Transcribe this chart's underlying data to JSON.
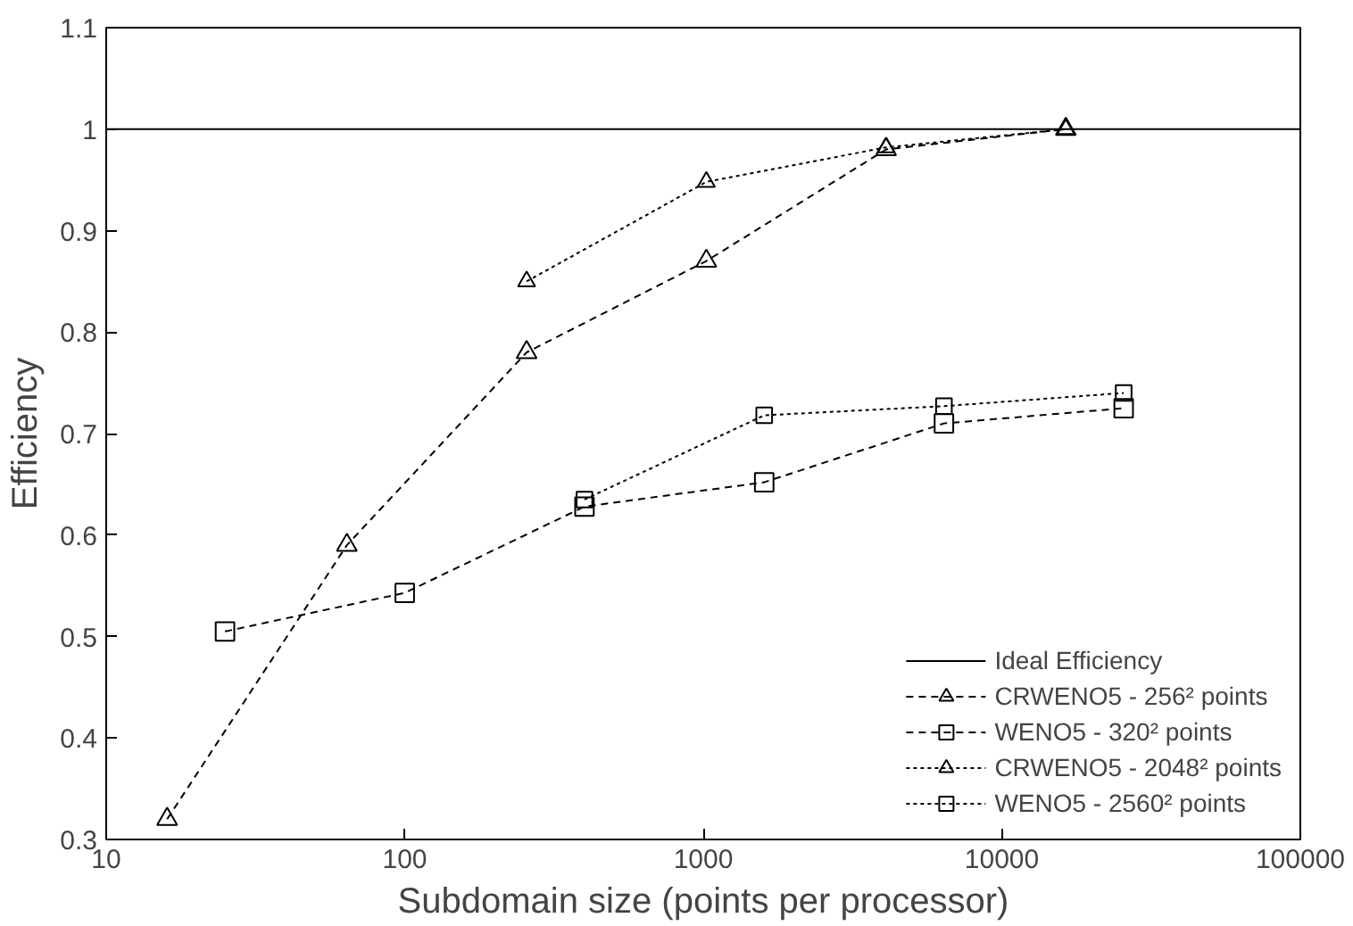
{
  "chart_data": {
    "type": "line",
    "xlabel": "Subdomain size (points per processor)",
    "ylabel": "Efficiency",
    "log": "x",
    "xlim": [
      10,
      100000
    ],
    "xticks": [
      10,
      100,
      1000,
      10000,
      100000
    ],
    "ylim": [
      0.3,
      1.1
    ],
    "yticks": [
      0.3,
      0.4,
      0.5,
      0.6,
      0.7,
      0.8,
      0.9,
      1,
      1.1
    ],
    "grid": false,
    "legend": "bottom right",
    "series": [
      {
        "name": "Ideal Efficiency",
        "color": "#000000",
        "x": [
          10,
          100000
        ],
        "values": [
          1,
          1
        ],
        "line_style": "solid",
        "marker": "none"
      },
      {
        "name": "CRWENO5 - 256² points",
        "color": "#000000",
        "x": [
          16,
          64,
          256,
          1024,
          4096,
          16384
        ],
        "values": [
          0.32,
          0.59,
          0.78,
          0.87,
          0.98,
          1.0
        ],
        "line_style": "dashed",
        "marker": "triangle"
      },
      {
        "name": "WENO5 - 320² points",
        "color": "#000000",
        "x": [
          25,
          100,
          400,
          1600,
          6400,
          25600
        ],
        "values": [
          0.505,
          0.543,
          0.628,
          0.652,
          0.71,
          0.725
        ],
        "line_style": "dashed",
        "marker": "square"
      },
      {
        "name": "CRWENO5 - 2048² points",
        "color": "#000000",
        "x": [
          256,
          1024,
          4096,
          16384
        ],
        "values": [
          0.85,
          0.948,
          0.982,
          1.0
        ],
        "line_style": "dotted",
        "marker": "triangle"
      },
      {
        "name": "WENO5 - 2560² points",
        "color": "#000000",
        "x": [
          400,
          1600,
          6400,
          25600
        ],
        "values": [
          0.635,
          0.718,
          0.727,
          0.74
        ],
        "line_style": "dotted",
        "marker": "square"
      }
    ]
  }
}
